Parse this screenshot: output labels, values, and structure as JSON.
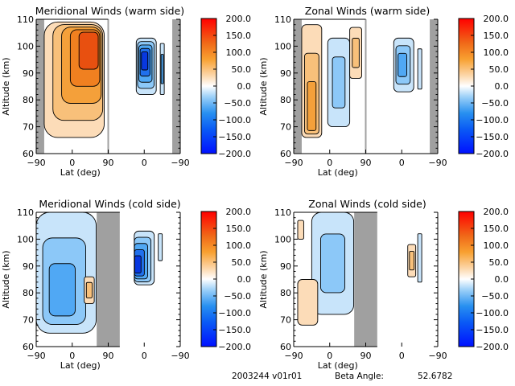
{
  "chart_data": [
    {
      "type": "heatmap",
      "id": "mer-warm",
      "title": "Meridional Winds (warm side)",
      "xlabel": "Lat (deg)",
      "ylabel": "Altitude (km)",
      "xtick_labels": [
        "−90",
        "0",
        "90",
        "0",
        "−90"
      ],
      "yticks": [
        60,
        70,
        80,
        90,
        100,
        110
      ],
      "ylim": [
        60,
        110
      ],
      "xlim_segments": [
        [
          -90,
          90
        ],
        [
          90,
          -90
        ]
      ],
      "missing_data_bands": [
        [
          -90,
          -70
        ],
        [
          -70,
          -90
        ]
      ],
      "features": [
        {
          "lat_range": [
            -70,
            80
          ],
          "alt_range": [
            66,
            109
          ],
          "sign": "positive",
          "peak": 160,
          "peak_location": [
            50,
            101
          ]
        },
        {
          "side": "second",
          "lat_range": [
            -30,
            20
          ],
          "alt_range": [
            82,
            103
          ],
          "sign": "negative",
          "peak": -180,
          "peak_location": [
            0,
            95
          ]
        },
        {
          "side": "second",
          "lat_range": [
            -50,
            -40
          ],
          "alt_range": [
            82,
            101
          ],
          "sign": "negative",
          "peak": -80
        }
      ],
      "colorbar": {
        "min": -200,
        "max": 200,
        "tick_labels": [
          "200.0",
          "150.0",
          "100.0",
          "50.0",
          "0.0",
          "−50.0",
          "−100.0",
          "−150.0",
          "−200.0"
        ]
      }
    },
    {
      "type": "heatmap",
      "id": "zon-warm",
      "title": "Zonal Winds (warm side)",
      "xlabel": "Lat (deg)",
      "ylabel": "Altitude (km)",
      "xtick_labels": [
        "−90",
        "0",
        "90",
        "0",
        "−90"
      ],
      "yticks": [
        60,
        70,
        80,
        90,
        100,
        110
      ],
      "ylim": [
        60,
        110
      ],
      "xlim_segments": [
        [
          -90,
          90
        ],
        [
          90,
          -90
        ]
      ],
      "missing_data_bands": [
        [
          -90,
          -70
        ],
        [
          -70,
          -90
        ]
      ],
      "features": [
        {
          "lat_range": [
            -70,
            -20
          ],
          "alt_range": [
            66,
            108
          ],
          "sign": "positive",
          "peak": 100,
          "peak_location": [
            -45,
            73
          ]
        },
        {
          "lat_range": [
            -5,
            50
          ],
          "alt_range": [
            70,
            103
          ],
          "sign": "negative",
          "peak": -60
        },
        {
          "lat_range": [
            50,
            80
          ],
          "alt_range": [
            88,
            107
          ],
          "sign": "positive",
          "peak": 60
        },
        {
          "side": "second",
          "lat_range": [
            -30,
            20
          ],
          "alt_range": [
            83,
            103
          ],
          "sign": "negative",
          "peak": -110,
          "peak_location": [
            0,
            93
          ]
        },
        {
          "side": "second",
          "lat_range": [
            -50,
            -40
          ],
          "alt_range": [
            84,
            99
          ],
          "sign": "negative",
          "peak": -40
        }
      ],
      "colorbar": {
        "min": -200,
        "max": 200,
        "tick_labels": [
          "200.0",
          "150.0",
          "100.0",
          "50.0",
          "0.0",
          "−50.0",
          "−100.0",
          "−150.0",
          "−200.0"
        ]
      }
    },
    {
      "type": "heatmap",
      "id": "mer-cold",
      "title": "Meridional Winds (cold side)",
      "xlabel": "Lat (deg)",
      "ylabel": "Altitude (km)",
      "xtick_labels": [
        "−90",
        "0",
        "90",
        "0",
        "−90"
      ],
      "yticks": [
        60,
        70,
        80,
        90,
        100,
        110
      ],
      "ylim": [
        60,
        110
      ],
      "xlim_segments": [
        [
          -90,
          90
        ],
        [
          90,
          -90
        ]
      ],
      "missing_data_bands": [
        [
          65,
          120
        ]
      ],
      "features": [
        {
          "lat_range": [
            -90,
            60
          ],
          "alt_range": [
            65,
            110
          ],
          "sign": "negative",
          "peak": -110,
          "peak_location": [
            -30,
            78
          ]
        },
        {
          "lat_range": [
            30,
            55
          ],
          "alt_range": [
            76,
            86
          ],
          "sign": "positive",
          "peak": 60
        },
        {
          "side": "second",
          "lat_range": [
            -25,
            25
          ],
          "alt_range": [
            83,
            103
          ],
          "sign": "negative",
          "peak": -190,
          "peak_location": [
            20,
            90
          ]
        },
        {
          "side": "second",
          "lat_range": [
            -45,
            -35
          ],
          "alt_range": [
            92,
            102
          ],
          "sign": "negative",
          "peak": -40
        }
      ],
      "colorbar": {
        "min": -200,
        "max": 200,
        "tick_labels": [
          "200.0",
          "150.0",
          "100.0",
          "50.0",
          "0.0",
          "−50.0",
          "−100.0",
          "−150.0",
          "−200.0"
        ]
      }
    },
    {
      "type": "heatmap",
      "id": "zon-cold",
      "title": "Zonal Winds (cold side)",
      "xlabel": "Lat (deg)",
      "ylabel": "Altitude (km)",
      "xtick_labels": [
        "−90",
        "0",
        "90",
        "0",
        "−90"
      ],
      "yticks": [
        60,
        70,
        80,
        90,
        100,
        110
      ],
      "ylim": [
        60,
        110
      ],
      "xlim_segments": [
        [
          -90,
          90
        ],
        [
          90,
          -90
        ]
      ],
      "missing_data_bands": [
        [
          65,
          120
        ]
      ],
      "features": [
        {
          "lat_range": [
            -45,
            60
          ],
          "alt_range": [
            72,
            110
          ],
          "sign": "negative",
          "peak": -60
        },
        {
          "lat_range": [
            -80,
            -30
          ],
          "alt_range": [
            68,
            85
          ],
          "sign": "positive",
          "peak": 50
        },
        {
          "lat_range": [
            -80,
            -65
          ],
          "alt_range": [
            100,
            107
          ],
          "sign": "positive",
          "peak": 40
        },
        {
          "side": "second",
          "lat_range": [
            -35,
            -15
          ],
          "alt_range": [
            86,
            98
          ],
          "sign": "positive",
          "peak": 60
        },
        {
          "side": "second",
          "lat_range": [
            -50,
            -40
          ],
          "alt_range": [
            84,
            102
          ],
          "sign": "negative",
          "peak": -50
        }
      ],
      "colorbar": {
        "min": -200,
        "max": 200,
        "tick_labels": [
          "200.0",
          "150.0",
          "100.0",
          "50.0",
          "0.0",
          "−50.0",
          "−100.0",
          "−150.0",
          "−200.0"
        ]
      }
    }
  ],
  "footer": {
    "date_version": "2003244 v01r01",
    "beta_label": "Beta Angle:",
    "beta_value": "52.6782"
  },
  "colors": {
    "missing": "#a0a0a0",
    "pos1": "#fcdcb8",
    "pos2": "#f8c07a",
    "pos3": "#f4a03a",
    "pos4": "#f08020",
    "pos5": "#e85010",
    "neg1": "#c8e4fa",
    "neg2": "#8cc8f8",
    "neg3": "#50a8f4",
    "neg4": "#2070ec",
    "neg5": "#0838e0"
  }
}
